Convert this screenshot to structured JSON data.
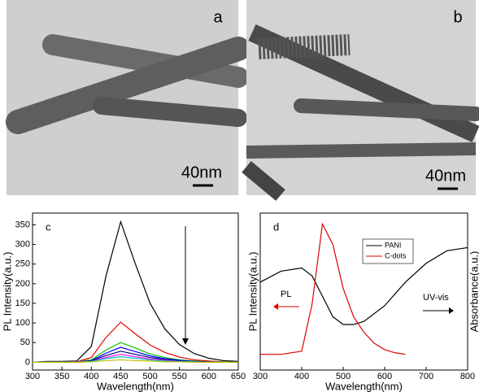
{
  "images": [
    {
      "label": "a",
      "scale_bar": "40nm"
    },
    {
      "label": "b",
      "scale_bar": "40nm"
    }
  ],
  "chart_data": [
    {
      "type": "line",
      "panel_label": "c",
      "x_label": "Wavelength(nm)",
      "y_label": "PL Intensity(a.u.)",
      "xlim": [
        300,
        650
      ],
      "xticks": [
        300,
        350,
        400,
        450,
        500,
        550,
        600,
        650
      ],
      "ylim": [
        -20,
        380
      ],
      "yticks": [
        0,
        50,
        100,
        150,
        200,
        250,
        300,
        350
      ],
      "x": [
        300,
        325,
        350,
        375,
        400,
        425,
        450,
        475,
        500,
        525,
        550,
        575,
        600,
        625,
        650
      ],
      "series": [
        {
          "color": "#000000",
          "values": [
            0,
            2,
            2,
            3,
            40,
            220,
            358,
            250,
            150,
            85,
            45,
            22,
            10,
            4,
            2
          ]
        },
        {
          "color": "#e00000",
          "values": [
            0,
            1,
            1,
            1,
            12,
            63,
            102,
            72,
            44,
            25,
            13,
            6,
            3,
            1,
            0
          ]
        },
        {
          "color": "#00c000",
          "values": [
            0,
            1,
            1,
            1,
            6,
            31,
            50,
            36,
            21,
            12,
            6,
            3,
            1,
            1,
            0
          ]
        },
        {
          "color": "#0000ff",
          "values": [
            0,
            1,
            1,
            1,
            4,
            23,
            38,
            27,
            16,
            9,
            5,
            2,
            1,
            0,
            0
          ]
        },
        {
          "color": "#000080",
          "values": [
            0,
            0,
            1,
            1,
            3,
            17,
            28,
            20,
            12,
            7,
            3,
            2,
            1,
            0,
            0
          ]
        },
        {
          "color": "#ff00ff",
          "values": [
            0,
            0,
            0,
            1,
            2,
            12,
            20,
            14,
            8,
            5,
            2,
            1,
            0,
            0,
            0
          ]
        },
        {
          "color": "#00c0c0",
          "values": [
            0,
            0,
            0,
            0,
            2,
            9,
            14,
            10,
            6,
            3,
            2,
            1,
            0,
            0,
            0
          ]
        },
        {
          "color": "#c0c000",
          "values": [
            0,
            0,
            0,
            0,
            1,
            4,
            6,
            4,
            3,
            1,
            1,
            0,
            0,
            0,
            0
          ]
        }
      ]
    },
    {
      "type": "line",
      "panel_label": "d",
      "x_label": "Wavelength(nm)",
      "y_label": "PL Intensity(a.u.)",
      "y2_label": "Absorbance(a.u.)",
      "xlim": [
        300,
        800
      ],
      "xticks": [
        300,
        400,
        500,
        600,
        700,
        800
      ],
      "ylim": [
        0,
        1
      ],
      "y2lim": [
        0,
        1
      ],
      "annotations": [
        "PL",
        "UV-vis"
      ],
      "series": [
        {
          "name": "PANI",
          "color": "#000000",
          "axis": "y2",
          "x": [
            300,
            350,
            400,
            425,
            450,
            475,
            500,
            525,
            550,
            600,
            650,
            700,
            750,
            800
          ],
          "values": [
            0.56,
            0.63,
            0.65,
            0.6,
            0.47,
            0.34,
            0.29,
            0.29,
            0.31,
            0.41,
            0.56,
            0.68,
            0.76,
            0.78
          ]
        },
        {
          "name": "C-dots",
          "color": "#e00000",
          "x": [
            300,
            350,
            400,
            425,
            450,
            475,
            500,
            525,
            550,
            575,
            600,
            625,
            650
          ],
          "values": [
            0.1,
            0.1,
            0.12,
            0.42,
            0.93,
            0.8,
            0.52,
            0.34,
            0.24,
            0.17,
            0.13,
            0.11,
            0.1
          ]
        }
      ]
    }
  ]
}
